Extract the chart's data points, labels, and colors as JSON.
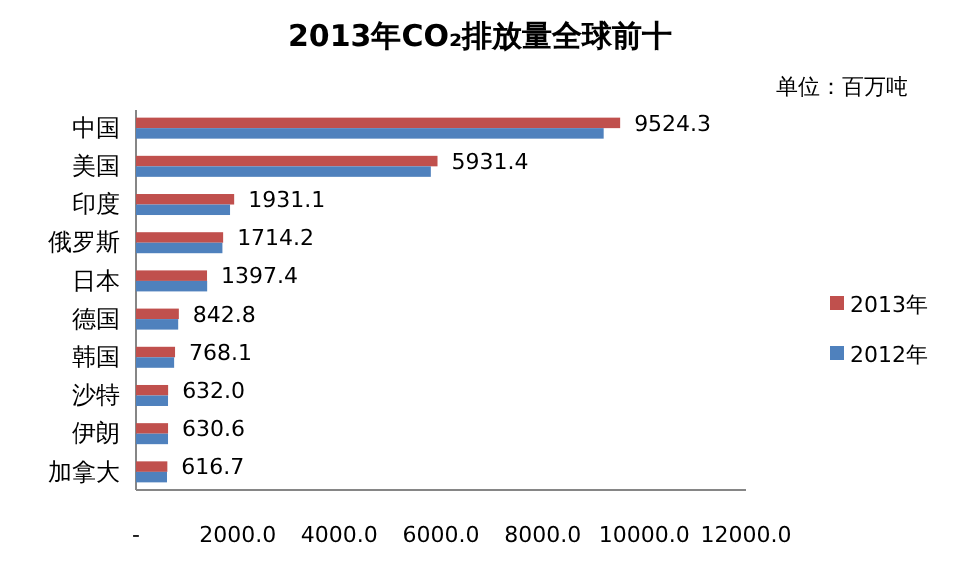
{
  "chart_data": {
    "type": "bar",
    "orientation": "horizontal",
    "title": "2013年CO₂排放量全球前十",
    "annotations": [
      "单位：百万吨"
    ],
    "categories": [
      "中国",
      "美国",
      "印度",
      "俄罗斯",
      "日本",
      "德国",
      "韩国",
      "沙特",
      "伊朗",
      "加拿大"
    ],
    "series": [
      {
        "name": "2013年",
        "color": "#c0504d",
        "values": [
          9524.3,
          5931.4,
          1931.1,
          1714.2,
          1397.4,
          842.8,
          768.1,
          632.0,
          630.6,
          616.7
        ],
        "value_labels": [
          "9524.3",
          "5931.4",
          "1931.1",
          "1714.2",
          "1397.4",
          "842.8",
          "768.1",
          "632.0",
          "630.6",
          "616.7"
        ]
      },
      {
        "name": "2012年",
        "color": "#4f81bd",
        "values": [
          9200,
          5800,
          1850,
          1700,
          1400,
          830,
          750,
          630,
          630,
          610
        ]
      }
    ],
    "xlim": [
      0,
      12000
    ],
    "xticks": [
      {
        "value": 0,
        "label": "-"
      },
      {
        "value": 2000,
        "label": "2000.0"
      },
      {
        "value": 4000,
        "label": "4000.0"
      },
      {
        "value": 6000,
        "label": "6000.0"
      },
      {
        "value": 8000,
        "label": "8000.0"
      },
      {
        "value": 10000,
        "label": "10000.0"
      },
      {
        "value": 12000,
        "label": "12000.0"
      }
    ],
    "legend": "right"
  }
}
